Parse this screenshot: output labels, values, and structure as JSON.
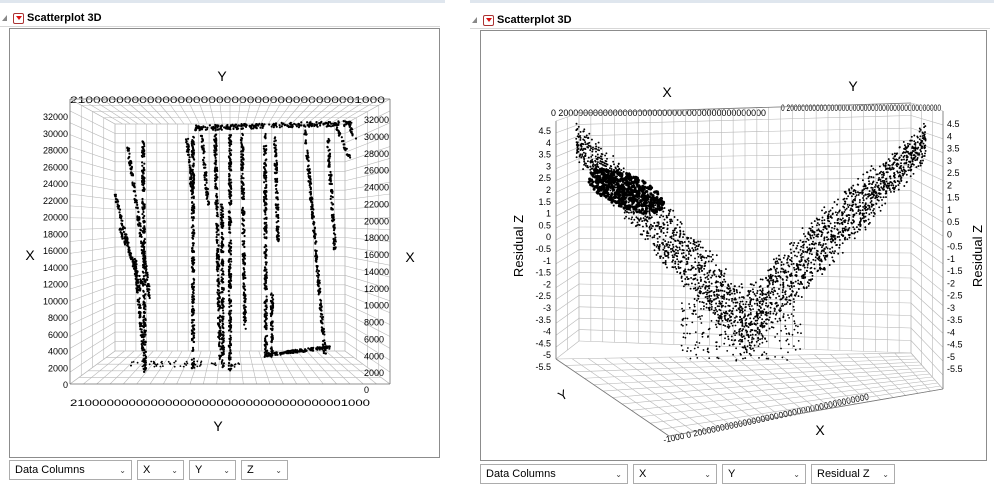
{
  "panels": [
    {
      "title": "Scatterplot 3D",
      "axis_labels": {
        "top": "Y",
        "bottom": "Y",
        "left": "X",
        "right": "X"
      },
      "top_ticks": "21000000000000000000000000000000000001000",
      "bottom_ticks": "21000000000000000000000000000000000001000",
      "left_ticks": [
        "32000",
        "30000",
        "28000",
        "26000",
        "24000",
        "22000",
        "20000",
        "18000",
        "16000",
        "14000",
        "12000",
        "10000",
        "8000",
        "6000",
        "4000",
        "2000",
        "0"
      ],
      "right_ticks": [
        "32000",
        "30000",
        "28000",
        "26000",
        "24000",
        "22000",
        "20000",
        "18000",
        "16000",
        "14000",
        "12000",
        "10000",
        "8000",
        "6000",
        "4000",
        "2000",
        "0"
      ],
      "controls": [
        {
          "label": "Data Columns"
        },
        {
          "label": "X"
        },
        {
          "label": "Y"
        },
        {
          "label": "Z"
        }
      ]
    },
    {
      "title": "Scatterplot 3D",
      "axis_labels": {
        "x_top": "X",
        "y_top": "Y",
        "z_left": "Residual Z",
        "z_right": "Residual Z",
        "x_bottom": "X",
        "y_bottom": "Y"
      },
      "top_ticks": "0 200000000000000000000000000000000000000000",
      "top_ticks_right": "0000",
      "left_ticks": [
        "4.5",
        "4",
        "3.5",
        "3",
        "2.5",
        "2",
        "1.5",
        "1",
        "0.5",
        "0",
        "-0.5",
        "-1",
        "-1.5",
        "-2",
        "-2.5",
        "-3",
        "-3.5",
        "-4",
        "-4.5",
        "-5",
        "-5.5"
      ],
      "right_ticks": [
        "4.5",
        "4",
        "3.5",
        "3",
        "2.5",
        "2",
        "1.5",
        "1",
        "0.5",
        "0",
        "-0.5",
        "-1",
        "-1.5",
        "-2",
        "-2.5",
        "-3",
        "-3.5",
        "-4",
        "-4.5",
        "-5",
        "-5.5"
      ],
      "bottom_y_ticks": "-1000 0 200000000000000000000000000000000000000",
      "bottom_y_tick_end": "2000",
      "controls": [
        {
          "label": "Data Columns"
        },
        {
          "label": "X"
        },
        {
          "label": "Y"
        },
        {
          "label": "Residual Z"
        }
      ]
    }
  ]
}
